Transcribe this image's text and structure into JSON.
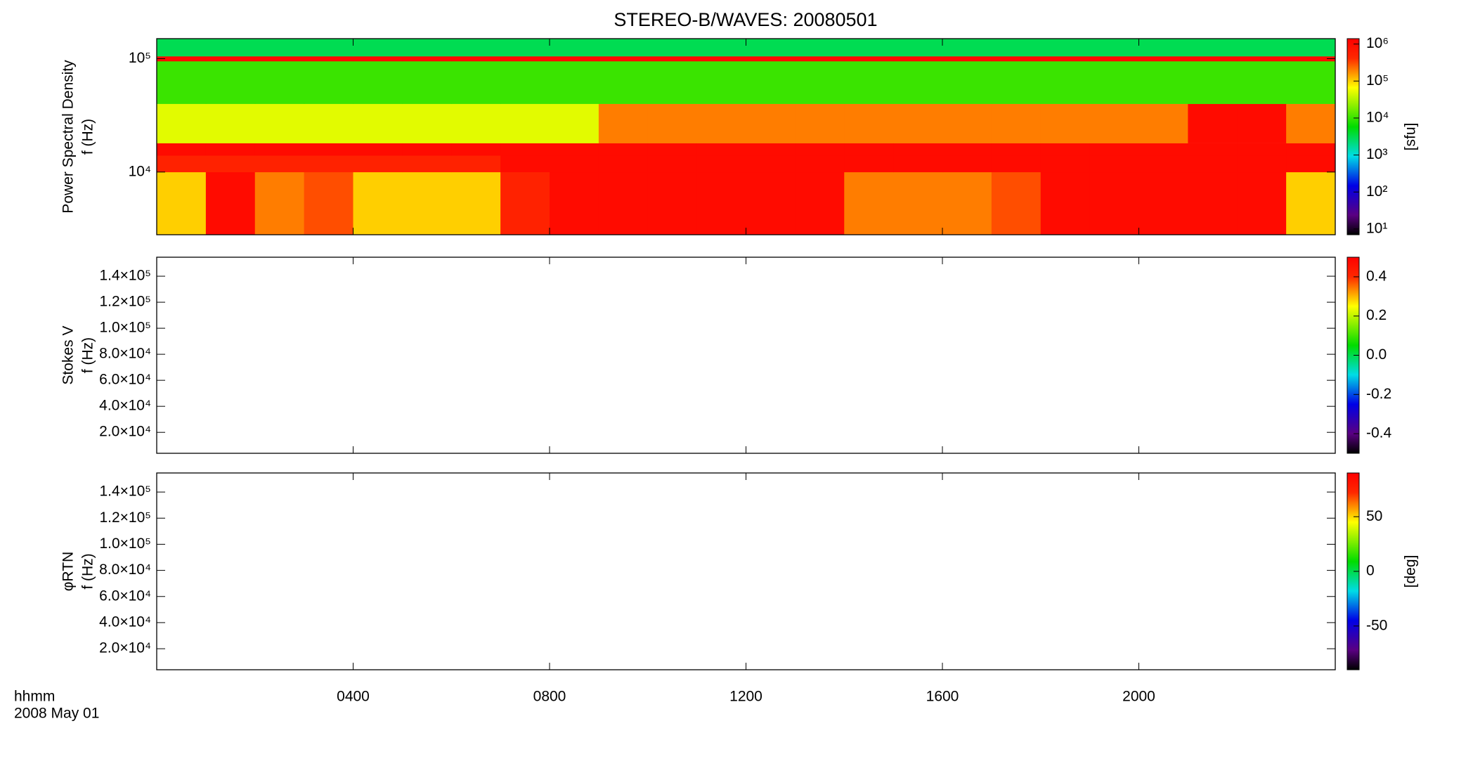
{
  "title": "STEREO-B/WAVES: 20080501",
  "x_axis_label": "hhmm",
  "date_label": "2008 May 01",
  "chart_data": [
    {
      "type": "heatmap",
      "ylabel_lines": [
        "Power Spectral Density",
        "f (Hz)"
      ],
      "xlim": [
        0,
        24
      ],
      "xticks": [
        {
          "value": 4,
          "label": "0400"
        },
        {
          "value": 8,
          "label": "0800"
        },
        {
          "value": 12,
          "label": "1200"
        },
        {
          "value": 16,
          "label": "1600"
        },
        {
          "value": 20,
          "label": "2000"
        }
      ],
      "ylim": [
        2800,
        150000
      ],
      "ylog": true,
      "yticks": [
        {
          "value": 10000,
          "label": "10⁴"
        },
        {
          "value": 100000,
          "label": "10⁵"
        }
      ],
      "clim": [
        7,
        1400000
      ],
      "clog": true,
      "cticks": [
        {
          "value": 10,
          "label": "10¹"
        },
        {
          "value": 100,
          "label": "10²"
        },
        {
          "value": 1000,
          "label": "10³"
        },
        {
          "value": 10000,
          "label": "10⁴"
        },
        {
          "value": 100000,
          "label": "10⁵"
        },
        {
          "value": 1000000,
          "label": "10⁶"
        }
      ],
      "colorbar_label": "[sfu]",
      "x_bins": [
        0,
        1,
        2,
        3,
        4,
        5,
        6,
        7,
        8,
        9,
        10,
        11,
        12,
        13,
        14,
        15,
        16,
        17,
        18,
        19,
        20,
        21,
        22,
        23,
        24
      ],
      "y_bins": [
        2800,
        10000,
        14000,
        18000,
        40000,
        95000,
        105000,
        150000
      ],
      "z": [
        [
          100000,
          1000000,
          200000,
          300000,
          100000,
          100000,
          100000,
          500000,
          1000000,
          1000000,
          1000000,
          1000000,
          1000000,
          1000000,
          200000,
          200000,
          200000,
          300000,
          1000000,
          1000000,
          1000000,
          1000000,
          1000000,
          100000
        ],
        [
          500000,
          500000,
          500000,
          500000,
          500000,
          500000,
          500000,
          1000000,
          1000000,
          1000000,
          1000000,
          1000000,
          1000000,
          1000000,
          1000000,
          1000000,
          1000000,
          1000000,
          1000000,
          1000000,
          1000000,
          1000000,
          1000000,
          1000000
        ],
        [
          1000000,
          1000000,
          1000000,
          1000000,
          1000000,
          1000000,
          1000000,
          1000000,
          1000000,
          1000000,
          1000000,
          1000000,
          1000000,
          1000000,
          1000000,
          1000000,
          1000000,
          1000000,
          1000000,
          1000000,
          1000000,
          1000000,
          1000000,
          1000000
        ],
        [
          50000,
          50000,
          50000,
          50000,
          50000,
          50000,
          50000,
          50000,
          50000,
          200000,
          200000,
          200000,
          200000,
          200000,
          200000,
          200000,
          200000,
          200000,
          200000,
          200000,
          200000,
          1000000,
          1000000,
          200000
        ],
        [
          10000,
          10000,
          10000,
          10000,
          10000,
          10000,
          10000,
          10000,
          10000,
          10000,
          10000,
          10000,
          10000,
          10000,
          10000,
          10000,
          10000,
          10000,
          10000,
          10000,
          10000,
          10000,
          10000,
          10000
        ],
        [
          1000000,
          1000000,
          1000000,
          1000000,
          1000000,
          1000000,
          1000000,
          1000000,
          1000000,
          1000000,
          1000000,
          1000000,
          1000000,
          1000000,
          1000000,
          1000000,
          1000000,
          1000000,
          1000000,
          1000000,
          1000000,
          1000000,
          1000000,
          1000000
        ],
        [
          3000,
          3000,
          3000,
          3000,
          3000,
          3000,
          3000,
          3000,
          3000,
          3000,
          3000,
          3000,
          3000,
          3000,
          3000,
          3000,
          3000,
          3000,
          3000,
          3000,
          3000,
          3000,
          3000,
          3000
        ]
      ]
    },
    {
      "type": "heatmap",
      "ylabel_lines": [
        "Stokes V",
        "f (Hz)"
      ],
      "xlim": [
        0,
        24
      ],
      "xticks": [
        {
          "value": 4,
          "label": "0400"
        },
        {
          "value": 8,
          "label": "0800"
        },
        {
          "value": 12,
          "label": "1200"
        },
        {
          "value": 16,
          "label": "1600"
        },
        {
          "value": 20,
          "label": "2000"
        }
      ],
      "ylim": [
        3900,
        154600
      ],
      "ylog": false,
      "yticks": [
        {
          "value": 20000,
          "label": "2.0×10⁴"
        },
        {
          "value": 40000,
          "label": "4.0×10⁴"
        },
        {
          "value": 60000,
          "label": "6.0×10⁴"
        },
        {
          "value": 80000,
          "label": "8.0×10⁴"
        },
        {
          "value": 100000,
          "label": "1.0×10⁵"
        },
        {
          "value": 120000,
          "label": "1.2×10⁵"
        },
        {
          "value": 140000,
          "label": "1.4×10⁵"
        }
      ],
      "clim": [
        -0.5,
        0.5
      ],
      "clog": false,
      "cticks": [
        {
          "value": -0.4,
          "label": "-0.4"
        },
        {
          "value": -0.2,
          "label": "-0.2"
        },
        {
          "value": 0,
          "label": "0.0"
        },
        {
          "value": 0.2,
          "label": "0.2"
        },
        {
          "value": 0.4,
          "label": "0.4"
        }
      ]
    },
    {
      "type": "heatmap",
      "ylabel_lines": [
        "φRTN",
        "f (Hz)"
      ],
      "xlim": [
        0,
        24
      ],
      "xticks": [
        {
          "value": 4,
          "label": "0400"
        },
        {
          "value": 8,
          "label": "0800"
        },
        {
          "value": 12,
          "label": "1200"
        },
        {
          "value": 16,
          "label": "1600"
        },
        {
          "value": 20,
          "label": "2000"
        }
      ],
      "ylim": [
        3900,
        154600
      ],
      "ylog": false,
      "yticks": [
        {
          "value": 20000,
          "label": "2.0×10⁴"
        },
        {
          "value": 40000,
          "label": "4.0×10⁴"
        },
        {
          "value": 60000,
          "label": "6.0×10⁴"
        },
        {
          "value": 80000,
          "label": "8.0×10⁴"
        },
        {
          "value": 100000,
          "label": "1.0×10⁵"
        },
        {
          "value": 120000,
          "label": "1.2×10⁵"
        },
        {
          "value": 140000,
          "label": "1.4×10⁵"
        }
      ],
      "clim": [
        -90,
        90
      ],
      "clog": false,
      "cticks": [
        -50,
        0,
        50
      ],
      "colorbar_label": "[deg]"
    }
  ]
}
